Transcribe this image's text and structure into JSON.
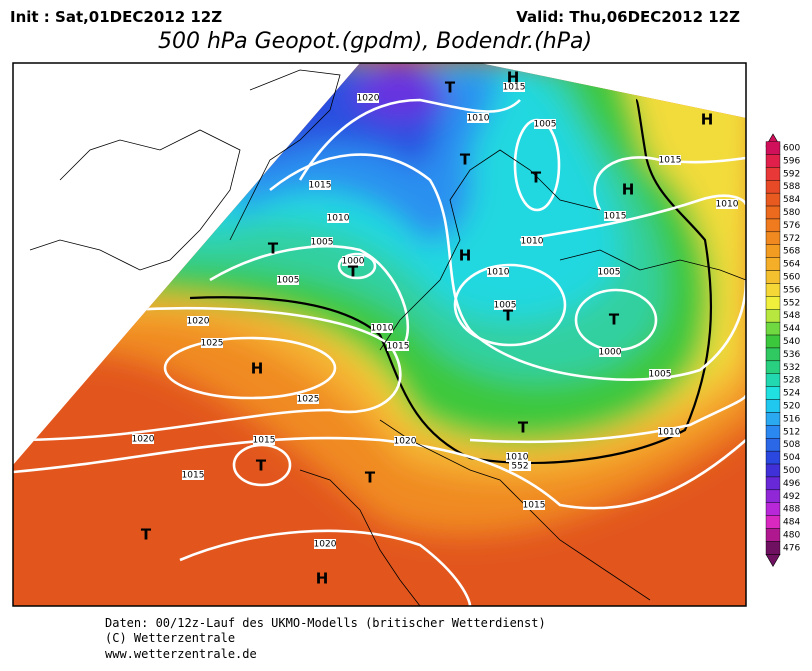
{
  "header": {
    "init": "Init : Sat,01DEC2012 12Z",
    "valid": "Valid: Thu,06DEC2012 12Z",
    "title": "500 hPa Geopot.(gpdm), Bodendr.(hPa)"
  },
  "legend": {
    "labels": [
      600,
      596,
      592,
      588,
      584,
      580,
      576,
      572,
      568,
      564,
      560,
      556,
      552,
      548,
      544,
      540,
      536,
      532,
      528,
      524,
      520,
      516,
      512,
      508,
      504,
      500,
      496,
      492,
      488,
      484,
      480,
      476
    ],
    "colors": [
      "#d0105a",
      "#e0204a",
      "#e83838",
      "#e84a28",
      "#e85a20",
      "#ec6a1e",
      "#f07a1e",
      "#f08a20",
      "#f39c22",
      "#f5ae28",
      "#f5c030",
      "#f5d838",
      "#f0f03c",
      "#b8e840",
      "#70d840",
      "#3cc83c",
      "#30c860",
      "#28d080",
      "#22d8b0",
      "#20e0e0",
      "#20c8f0",
      "#2aa8f0",
      "#2a88f0",
      "#2a68e8",
      "#2a48e0",
      "#4030d8",
      "#6828d8",
      "#9028d8",
      "#b828d8",
      "#d828c0",
      "#b01890",
      "#701060"
    ]
  },
  "map": {
    "isobar_labels": [
      "1020",
      "1015",
      "1010",
      "1005",
      "1015",
      "1010",
      "1015",
      "1010",
      "1005",
      "1000",
      "1005",
      "1010",
      "1015",
      "1010",
      "1005",
      "1005",
      "1010",
      "1015",
      "1020",
      "1025",
      "1025",
      "1000",
      "1005",
      "1020",
      "1015",
      "1020",
      "1015",
      "1010",
      "1010",
      "1015",
      "1020",
      "552"
    ],
    "pressure_systems": [
      "T",
      "H",
      "H",
      "T",
      "T",
      "H",
      "T",
      "T",
      "H",
      "T",
      "T",
      "H",
      "T",
      "T",
      "T",
      "T",
      "H"
    ]
  },
  "footer": {
    "source": "Daten: 00/12z-Lauf des UKMO-Modells (britischer Wetterdienst)",
    "copyright": "(C) Wetterzentrale",
    "url": "www.wetterzentrale.de"
  }
}
